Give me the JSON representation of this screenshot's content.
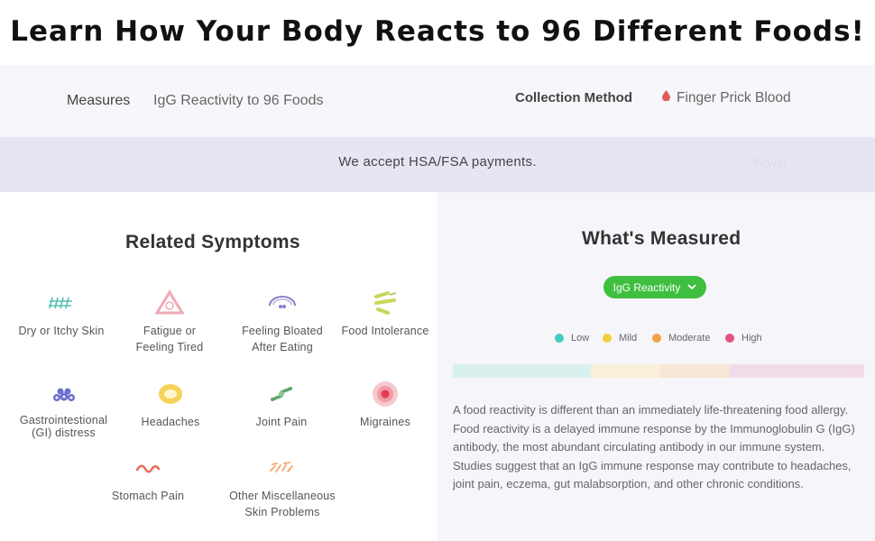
{
  "headline": "Learn How Your Body Reacts to 96 Different Foods!",
  "info": {
    "measures_label": "Measures",
    "measures_value": "IgG Reactivity to 96 Foods",
    "collection_label": "Collection Method",
    "collection_value": "Finger Prick Blood",
    "collection_icon": "blood-drop-icon"
  },
  "banner": {
    "text": "We accept HSA/FSA payments.",
    "ghost_text": "Ways!"
  },
  "symptoms": {
    "title": "Related Symptoms",
    "items": [
      {
        "label": "Dry or Itchy Skin",
        "icon": "dry-skin-icon"
      },
      {
        "label": "Fatigue or\nFeeling Tired",
        "icon": "fatigue-icon"
      },
      {
        "label": "Feeling Bloated\nAfter Eating",
        "icon": "bloating-icon"
      },
      {
        "label": "Food Intolerance",
        "icon": "food-intolerance-icon"
      },
      {
        "label": "Gastrointestional\n(GI) distress",
        "icon": "gi-distress-icon"
      },
      {
        "label": "Headaches",
        "icon": "headache-icon"
      },
      {
        "label": "Joint Pain",
        "icon": "joint-pain-icon"
      },
      {
        "label": "Migraines",
        "icon": "migraine-icon"
      },
      {
        "label": "Stomach Pain",
        "icon": "stomach-pain-icon"
      },
      {
        "label": "Other Miscellaneous\nSkin Problems",
        "icon": "skin-problems-icon"
      }
    ]
  },
  "measured": {
    "title": "What's Measured",
    "dropdown_label": "IgG Reactivity",
    "legend": [
      {
        "label": "Low",
        "color": "#3fcfc0"
      },
      {
        "label": "Mild",
        "color": "#f2cf3d"
      },
      {
        "label": "Moderate",
        "color": "#f0a443"
      },
      {
        "label": "High",
        "color": "#e2537f"
      }
    ],
    "scale_colors": [
      "#d9f1ee",
      "#f8f1d8",
      "#f6e7d6",
      "#f2dbe9"
    ],
    "description": "A food reactivity is different than an immediately life-threatening food allergy. Food reactivity is a delayed immune response by the Immunoglobulin G (IgG) antibody, the most abundant circulating antibody in our immune system. Studies suggest that an IgG immune response may contribute to headaches, joint pain, eczema, gut malabsorption, and other chronic conditions."
  }
}
